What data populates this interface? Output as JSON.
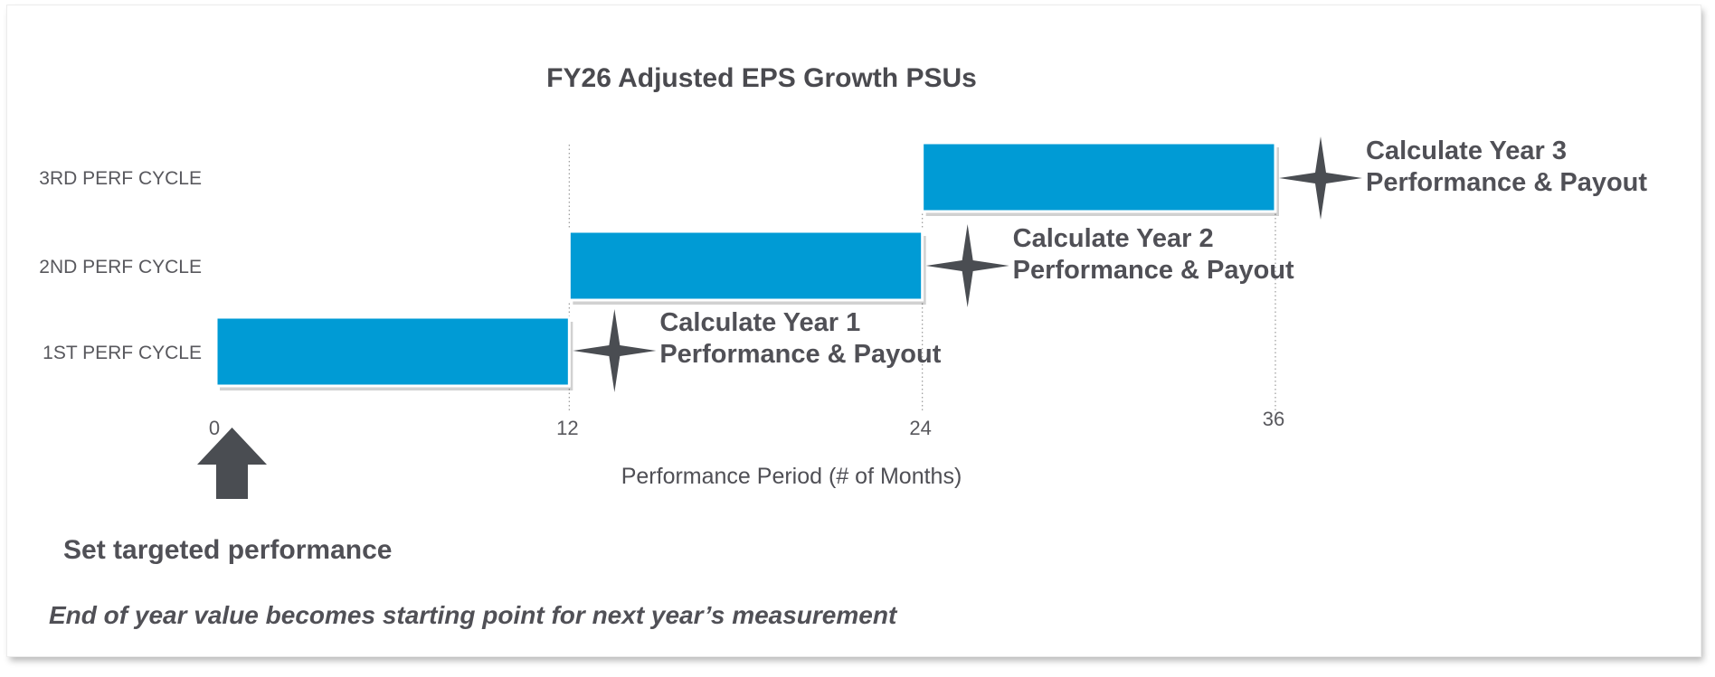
{
  "chart_data": {
    "type": "bar",
    "orientation": "horizontal",
    "title": "FY26 Adjusted EPS Growth PSUs",
    "xlabel": "Performance Period (# of Months)",
    "ylabel": "",
    "xlim": [
      0,
      36
    ],
    "x_ticks": [
      "0",
      "12",
      "24",
      "36"
    ],
    "categories": [
      "1ST PERF CYCLE",
      "2ND PERF CYCLE",
      "3RD PERF CYCLE"
    ],
    "series": [
      {
        "ranges": [
          [
            0,
            12
          ],
          [
            12,
            24
          ],
          [
            24,
            36
          ]
        ],
        "color": "#009bd5"
      }
    ],
    "annotations": [
      {
        "line1": "Calculate Year 1",
        "line2": "Performance & Payout",
        "at_month": 12,
        "category": "1ST PERF CYCLE",
        "icon": "four-point-star-icon"
      },
      {
        "line1": "Calculate Year 2",
        "line2": "Performance & Payout",
        "at_month": 24,
        "category": "2ND PERF CYCLE",
        "icon": "four-point-star-icon"
      },
      {
        "line1": "Calculate Year 3",
        "line2": "Performance & Payout",
        "at_month": 36,
        "category": "3RD PERF CYCLE",
        "icon": "four-point-star-icon"
      }
    ],
    "start_marker": {
      "label": "Set targeted performance",
      "at_month": 0,
      "icon": "up-arrow-icon"
    },
    "footnote": "End of year value becomes starting point for next year’s measurement",
    "grid": "vertical dotted lines at 12, 24, 36",
    "legend": "none",
    "colors": {
      "bar": "#009bd5",
      "icon": "#4a4d52",
      "text": "#505056"
    }
  }
}
